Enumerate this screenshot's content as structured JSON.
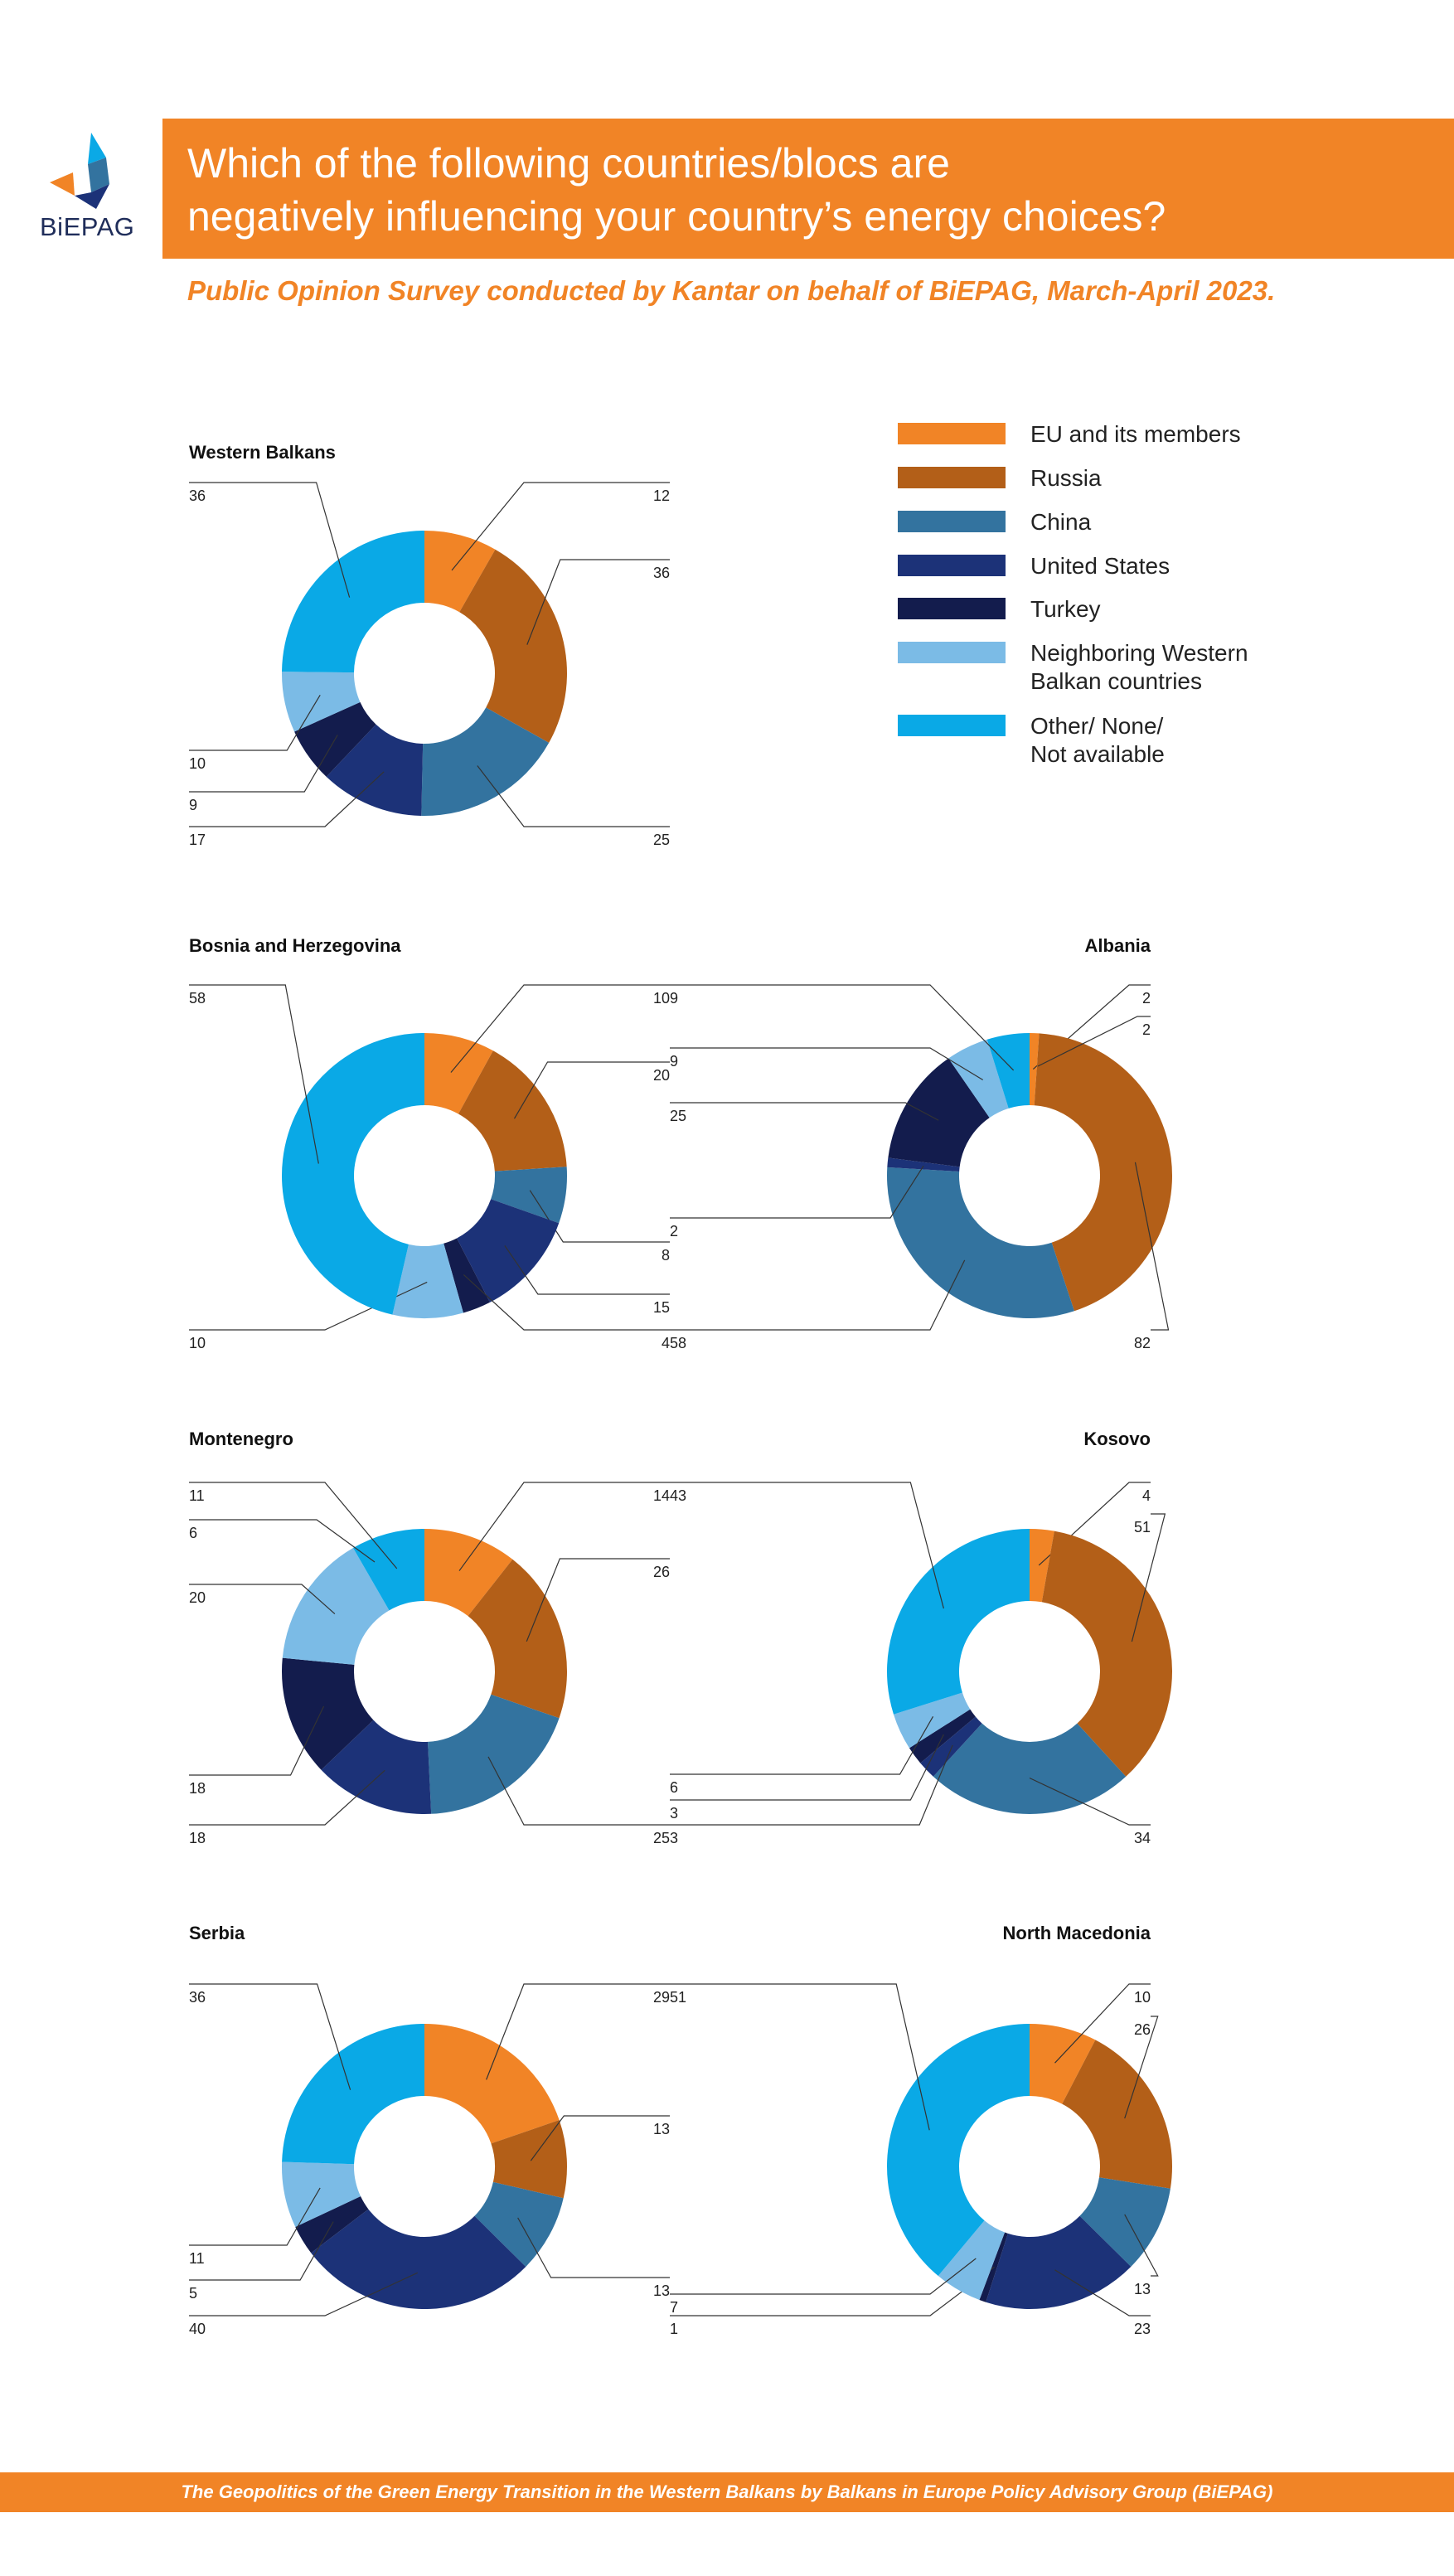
{
  "logo": {
    "text": "BiEPAG",
    "icon": "biepag-logo-icon"
  },
  "header": {
    "title": "Which of the following countries/blocs are\nnegatively influencing your country’s energy choices?",
    "subtitle": "Public Opinion Survey conducted by Kantar on behalf of BiEPAG, March-April 2023."
  },
  "legend": [
    {
      "label": "EU and its members",
      "color": "#f18426"
    },
    {
      "label": "Russia",
      "color": "#b35f18"
    },
    {
      "label": "China",
      "color": "#33739f"
    },
    {
      "label": "United States",
      "color": "#1c3278"
    },
    {
      "label": "Turkey",
      "color": "#131c4d"
    },
    {
      "label": "Neighboring Western\nBalkan countries",
      "color": "#7bbbe6"
    },
    {
      "label": "Other/ None/\nNot available",
      "color": "#0aa9e6"
    }
  ],
  "footer": {
    "text": "The Geopolitics of the Green Energy Transition in the Western Balkans by Balkans in Europe Policy Advisory Group (BiEPAG)"
  },
  "chart_data": [
    {
      "type": "pie",
      "title": "Western Balkans",
      "categories": [
        "EU and its members",
        "Russia",
        "China",
        "United States",
        "Turkey",
        "Neighboring Western Balkan countries",
        "Other/ None/ Not available"
      ],
      "values": [
        12,
        36,
        25,
        17,
        9,
        10,
        36
      ]
    },
    {
      "type": "pie",
      "title": "Bosnia and Herzegovina",
      "categories": [
        "EU and its members",
        "Russia",
        "China",
        "United States",
        "Turkey",
        "Neighboring Western Balkan countries",
        "Other/ None/ Not available"
      ],
      "values": [
        10,
        20,
        8,
        15,
        4,
        10,
        58
      ]
    },
    {
      "type": "pie",
      "title": "Albania",
      "categories": [
        "EU and its members",
        "Russia",
        "China",
        "United States",
        "Turkey",
        "Neighboring Western Balkan countries",
        "Other/ None/ Not available"
      ],
      "values": [
        2,
        82,
        58,
        2,
        25,
        9,
        9
      ],
      "extra_labels": [
        "2"
      ]
    },
    {
      "type": "pie",
      "title": "Montenegro",
      "categories": [
        "EU and its members",
        "Russia",
        "China",
        "United States",
        "Turkey",
        "Neighboring Western Balkan countries",
        "Other/ None/ Not available"
      ],
      "values": [
        14,
        26,
        25,
        18,
        18,
        20,
        11
      ],
      "extra_labels": [
        "6"
      ]
    },
    {
      "type": "pie",
      "title": "Kosovo",
      "categories": [
        "EU and its members",
        "Russia",
        "China",
        "United States",
        "Turkey",
        "Neighboring Western Balkan countries",
        "Other/ None/ Not available"
      ],
      "values": [
        4,
        51,
        34,
        3,
        3,
        6,
        43
      ]
    },
    {
      "type": "pie",
      "title": "Serbia",
      "categories": [
        "EU and its members",
        "Russia",
        "China",
        "United States",
        "Turkey",
        "Neighboring Western Balkan countries",
        "Other/ None/ Not available"
      ],
      "values": [
        29,
        13,
        13,
        40,
        5,
        11,
        36
      ]
    },
    {
      "type": "pie",
      "title": "North Macedonia",
      "categories": [
        "EU and its members",
        "Russia",
        "China",
        "United States",
        "Turkey",
        "Neighboring Western Balkan countries",
        "Other/ None/ Not available"
      ],
      "values": [
        10,
        26,
        13,
        23,
        1,
        7,
        51
      ]
    }
  ]
}
